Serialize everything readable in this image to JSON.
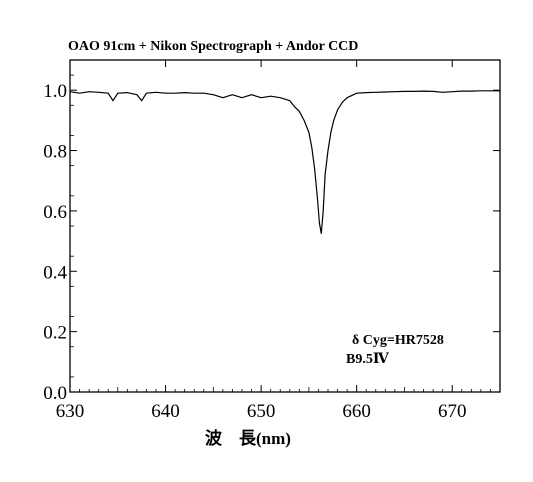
{
  "chart_data": {
    "type": "line",
    "title": "OAO 91cm + Nikon Spectrograph + Andor CCD",
    "xlabel": "波　長(nm)",
    "ylabel": "",
    "xlim": [
      630,
      675
    ],
    "ylim": [
      0.0,
      1.1
    ],
    "x_ticks": [
      630,
      640,
      650,
      660,
      670
    ],
    "x_tick_labels": [
      "630",
      "640",
      "650",
      "660",
      "670"
    ],
    "y_ticks": [
      0.0,
      0.2,
      0.4,
      0.6,
      0.8,
      1.0
    ],
    "y_tick_labels": [
      "0.0",
      "0.2",
      "0.4",
      "0.6",
      "0.8",
      "1.0"
    ],
    "grid": false,
    "annotations": [
      "δ Cyg=HR7528",
      "B9.5Ⅳ"
    ],
    "series": [
      {
        "color": "#000000",
        "x": [
          630.0,
          631.0,
          632.0,
          633.0,
          634.0,
          634.5,
          635.0,
          636.0,
          637.0,
          637.5,
          638.0,
          639.0,
          640.0,
          641.0,
          642.0,
          643.0,
          644.0,
          645.0,
          646.0,
          647.0,
          648.0,
          649.0,
          650.0,
          651.0,
          652.0,
          653.0,
          653.5,
          654.0,
          654.5,
          655.0,
          655.3,
          655.6,
          655.9,
          656.1,
          656.3,
          656.5,
          656.7,
          657.0,
          657.3,
          657.6,
          658.0,
          658.5,
          659.0,
          660.0,
          661.0,
          662.0,
          663.0,
          664.0,
          665.0,
          666.0,
          667.0,
          668.0,
          669.0,
          670.0,
          671.0,
          672.0,
          673.0,
          674.0,
          675.0
        ],
        "y": [
          0.995,
          0.99,
          0.995,
          0.993,
          0.99,
          0.965,
          0.99,
          0.992,
          0.985,
          0.965,
          0.99,
          0.993,
          0.99,
          0.99,
          0.992,
          0.99,
          0.99,
          0.985,
          0.975,
          0.985,
          0.975,
          0.985,
          0.975,
          0.98,
          0.975,
          0.965,
          0.945,
          0.93,
          0.9,
          0.86,
          0.81,
          0.74,
          0.64,
          0.56,
          0.525,
          0.6,
          0.72,
          0.8,
          0.86,
          0.9,
          0.935,
          0.96,
          0.975,
          0.99,
          0.992,
          0.993,
          0.994,
          0.995,
          0.996,
          0.996,
          0.997,
          0.996,
          0.993,
          0.995,
          0.997,
          0.997,
          0.998,
          0.998,
          0.998
        ]
      }
    ]
  }
}
